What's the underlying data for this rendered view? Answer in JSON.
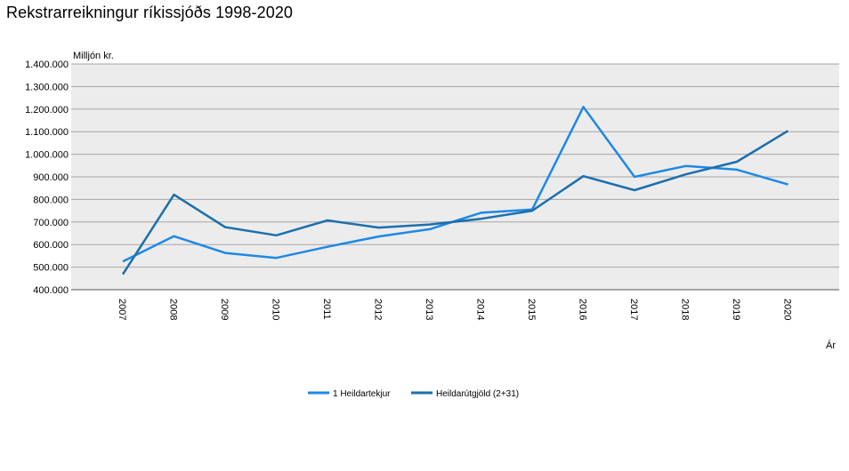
{
  "chart_data": {
    "type": "line",
    "title": "Rekstrarreikningur ríkissjóðs 1998-2020",
    "xlabel": "Ár",
    "ylabel": "Milljón kr.",
    "ylim": [
      400000,
      1400000
    ],
    "yticks": [
      "400.000",
      "500.000",
      "600.000",
      "700.000",
      "800.000",
      "900.000",
      "1.000.000",
      "1.100.000",
      "1.200.000",
      "1.300.000",
      "1.400.000"
    ],
    "ytick_values": [
      400000,
      500000,
      600000,
      700000,
      800000,
      900000,
      1000000,
      1100000,
      1200000,
      1300000,
      1400000
    ],
    "categories": [
      "2007",
      "2008",
      "2009",
      "2010",
      "2011",
      "2012",
      "2013",
      "2014",
      "2015",
      "2016",
      "2017",
      "2018",
      "2019",
      "2020"
    ],
    "grid": true,
    "legend_position": "bottom",
    "series": [
      {
        "name": "1 Heildartekjur",
        "color": "#1e88e5",
        "values": [
          525000,
          637000,
          563000,
          541000,
          590000,
          636000,
          668000,
          741000,
          755000,
          1210000,
          900000,
          948000,
          932000,
          866000
        ]
      },
      {
        "name": "Heildarútgjöld (2+31)",
        "color": "#1a6fae",
        "values": [
          468000,
          821000,
          677000,
          641000,
          707000,
          675000,
          689000,
          714000,
          750000,
          903000,
          841000,
          911000,
          967000,
          1104000
        ]
      }
    ]
  }
}
